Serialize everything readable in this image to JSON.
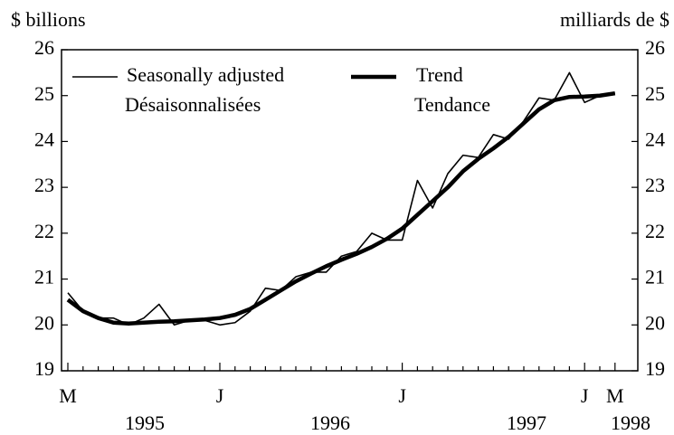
{
  "chart_data": {
    "type": "line",
    "y_label_left": "$ billions",
    "y_label_right": "milliards de $",
    "categories": [
      "M",
      null,
      null,
      null,
      null,
      null,
      null,
      null,
      null,
      null,
      "J",
      null,
      null,
      null,
      null,
      null,
      null,
      null,
      null,
      null,
      null,
      null,
      "J",
      null,
      null,
      null,
      null,
      null,
      null,
      null,
      null,
      null,
      null,
      null,
      "J",
      null,
      "M"
    ],
    "years": [
      "1995",
      "1996",
      "1997",
      "1998"
    ],
    "series": [
      {
        "name": "Seasonally adjusted",
        "name_fr": "Désaisonnalisées",
        "color": "#000000",
        "width": 1.6,
        "values": [
          20.7,
          20.3,
          20.15,
          20.15,
          20.0,
          20.15,
          20.45,
          20.0,
          20.1,
          20.1,
          20.0,
          20.05,
          20.3,
          20.8,
          20.75,
          21.05,
          21.15,
          21.15,
          21.5,
          21.6,
          22.0,
          21.85,
          21.85,
          23.15,
          22.55,
          23.3,
          23.7,
          23.65,
          24.15,
          24.05,
          24.45,
          24.95,
          24.9,
          25.5,
          24.85,
          25.0,
          25.05
        ]
      },
      {
        "name": "Trend",
        "name_fr": "Tendance",
        "color": "#000000",
        "width": 4.5,
        "values": [
          20.55,
          20.3,
          20.15,
          20.05,
          20.03,
          20.05,
          20.07,
          20.08,
          20.1,
          20.12,
          20.15,
          20.22,
          20.35,
          20.55,
          20.75,
          20.95,
          21.12,
          21.28,
          21.42,
          21.55,
          21.7,
          21.88,
          22.1,
          22.4,
          22.7,
          23.0,
          23.35,
          23.62,
          23.85,
          24.1,
          24.4,
          24.7,
          24.9,
          24.97,
          24.98,
          25.0,
          25.05
        ]
      }
    ],
    "ylim": [
      19,
      26
    ],
    "yticks": [
      19,
      20,
      21,
      22,
      23,
      24,
      25,
      26
    ]
  }
}
